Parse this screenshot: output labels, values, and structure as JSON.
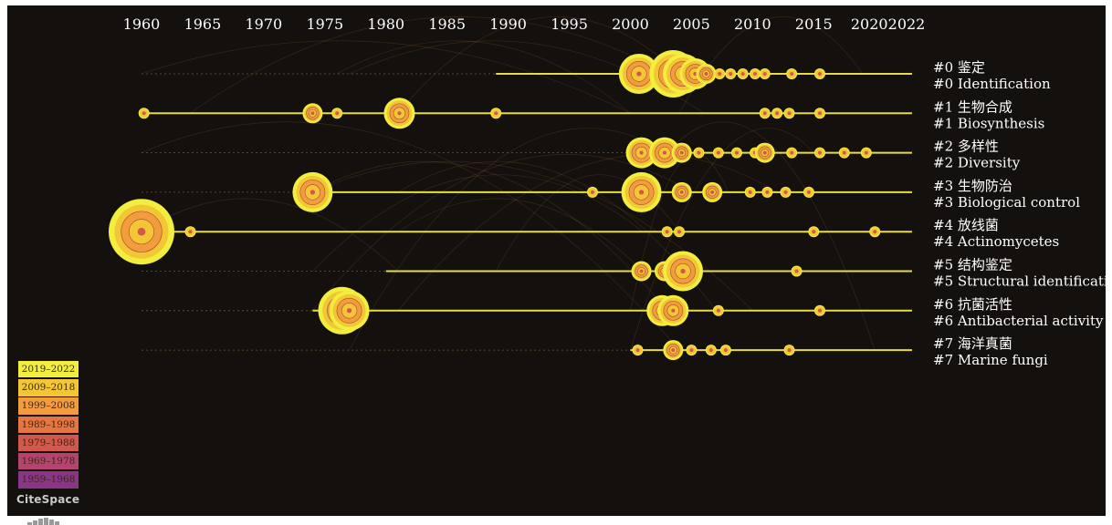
{
  "chart_data": {
    "type": "scatter",
    "title": "",
    "x_ticks": [
      1960,
      1965,
      1970,
      1975,
      1980,
      1985,
      1990,
      1995,
      2000,
      2005,
      2010,
      2015,
      2020,
      2022
    ],
    "xlim": [
      1960,
      2022
    ],
    "clusters": [
      {
        "label_zh": "#0 鉴定",
        "label_en": "#0 Identification",
        "line_start": 1989,
        "line_end": 2022,
        "nodes": [
          {
            "year": 2000.7,
            "size": 4
          },
          {
            "year": 2003.5,
            "size": 5
          },
          {
            "year": 2004.3,
            "size": 4
          },
          {
            "year": 2005.3,
            "size": 3
          },
          {
            "year": 2006.2,
            "size": 2
          },
          {
            "year": 2007.3,
            "size": 1
          },
          {
            "year": 2008.2,
            "size": 1
          },
          {
            "year": 2009.2,
            "size": 1
          },
          {
            "year": 2010.2,
            "size": 1
          },
          {
            "year": 2011.0,
            "size": 1
          },
          {
            "year": 2013.2,
            "size": 1
          },
          {
            "year": 2015.5,
            "size": 1
          }
        ]
      },
      {
        "label_zh": "#1 生物合成",
        "label_en": "#1 Biosynthesis",
        "line_start": 1960,
        "line_end": 2022,
        "nodes": [
          {
            "year": 1960.2,
            "size": 1
          },
          {
            "year": 1974.0,
            "size": 2
          },
          {
            "year": 1976.0,
            "size": 1
          },
          {
            "year": 1981.1,
            "size": 3
          },
          {
            "year": 1989.0,
            "size": 1
          },
          {
            "year": 2011.0,
            "size": 1
          },
          {
            "year": 2012.0,
            "size": 1
          },
          {
            "year": 2013.0,
            "size": 1
          },
          {
            "year": 2015.5,
            "size": 1
          }
        ]
      },
      {
        "label_zh": "#2 多样性",
        "label_en": "#2 Diversity",
        "line_start": 2000,
        "line_end": 2022,
        "nodes": [
          {
            "year": 2000.9,
            "size": 3
          },
          {
            "year": 2002.8,
            "size": 3
          },
          {
            "year": 2004.2,
            "size": 2
          },
          {
            "year": 2005.6,
            "size": 1
          },
          {
            "year": 2007.2,
            "size": 1
          },
          {
            "year": 2008.7,
            "size": 1
          },
          {
            "year": 2010.2,
            "size": 1
          },
          {
            "year": 2011.0,
            "size": 2
          },
          {
            "year": 2013.2,
            "size": 1
          },
          {
            "year": 2015.5,
            "size": 1
          },
          {
            "year": 2017.5,
            "size": 1
          },
          {
            "year": 2019.3,
            "size": 1
          }
        ]
      },
      {
        "label_zh": "#3 生物防治",
        "label_en": "#3 Biological control",
        "line_start": 1974,
        "line_end": 2022,
        "nodes": [
          {
            "year": 1974.0,
            "size": 4
          },
          {
            "year": 1996.9,
            "size": 1
          },
          {
            "year": 2000.9,
            "size": 4
          },
          {
            "year": 2004.2,
            "size": 2
          },
          {
            "year": 2006.7,
            "size": 2
          },
          {
            "year": 2009.8,
            "size": 1
          },
          {
            "year": 2011.2,
            "size": 1
          },
          {
            "year": 2012.7,
            "size": 1
          },
          {
            "year": 2014.6,
            "size": 1
          }
        ]
      },
      {
        "label_zh": "#4 放线菌",
        "label_en": "#4 Actinomycetes",
        "line_start": 1960,
        "line_end": 2022,
        "nodes": [
          {
            "year": 1960.0,
            "size": 6
          },
          {
            "year": 1964.0,
            "size": 1
          },
          {
            "year": 2003.0,
            "size": 1
          },
          {
            "year": 2004.0,
            "size": 1
          },
          {
            "year": 2015.0,
            "size": 1
          },
          {
            "year": 2020.0,
            "size": 1
          }
        ]
      },
      {
        "label_zh": "#5 结构鉴定",
        "label_en": "#5 Structural identification",
        "line_start": 1980,
        "line_end": 2022,
        "nodes": [
          {
            "year": 2000.9,
            "size": 2
          },
          {
            "year": 2002.8,
            "size": 2
          },
          {
            "year": 2004.3,
            "size": 4
          },
          {
            "year": 2013.6,
            "size": 1
          }
        ]
      },
      {
        "label_zh": "#6 抗菌活性",
        "label_en": "#6 Antibacterial activity",
        "line_start": 1974,
        "line_end": 2022,
        "nodes": [
          {
            "year": 1976.4,
            "size": 5
          },
          {
            "year": 1977.0,
            "size": 4
          },
          {
            "year": 2002.6,
            "size": 3
          },
          {
            "year": 2003.5,
            "size": 3
          },
          {
            "year": 2007.2,
            "size": 1
          },
          {
            "year": 2015.5,
            "size": 1
          }
        ]
      },
      {
        "label_zh": "#7 海洋真菌",
        "label_en": "#7 Marine fungi",
        "line_start": 2000,
        "line_end": 2022,
        "nodes": [
          {
            "year": 2000.6,
            "size": 1
          },
          {
            "year": 2003.5,
            "size": 2
          },
          {
            "year": 2005.0,
            "size": 1
          },
          {
            "year": 2006.6,
            "size": 1
          },
          {
            "year": 2007.8,
            "size": 1
          },
          {
            "year": 2013.0,
            "size": 1
          }
        ]
      }
    ],
    "legend": [
      {
        "label": "2019–2022",
        "color": "#f1ee3e"
      },
      {
        "label": "2009–2018",
        "color": "#f3c636"
      },
      {
        "label": "1999–2008",
        "color": "#f39b3f"
      },
      {
        "label": "1989–1998",
        "color": "#e87442"
      },
      {
        "label": "1979–1988",
        "color": "#d4574e"
      },
      {
        "label": "1969–1978",
        "color": "#b4446f"
      },
      {
        "label": "1959–1968",
        "color": "#8a3588"
      }
    ]
  },
  "brand": "CiteSpace",
  "colors": {
    "background": "#14100e",
    "axis_line": "#e6dc45",
    "ring_outer": "#f1ee3e",
    "ring_mid": "#f3c636",
    "ring_inner": "#f39b3f",
    "core": "#d4574e"
  }
}
